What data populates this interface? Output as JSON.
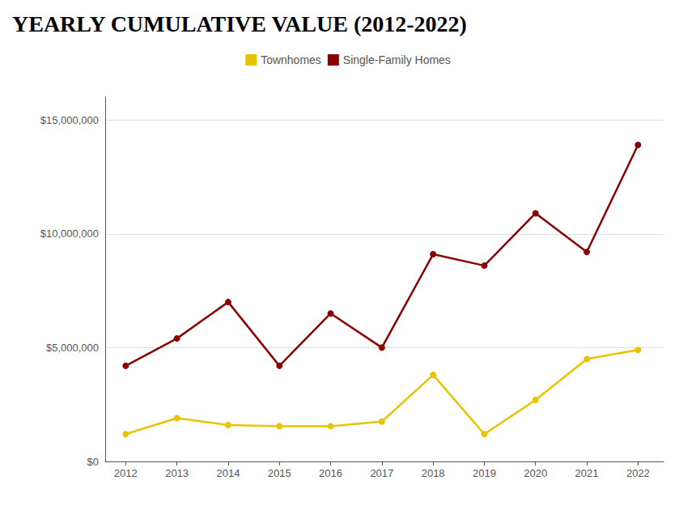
{
  "chart_data": {
    "type": "line",
    "title": "YEARLY CUMULATIVE VALUE (2012-2022)",
    "x": [
      2012,
      2013,
      2014,
      2015,
      2016,
      2017,
      2018,
      2019,
      2020,
      2021,
      2022
    ],
    "series": [
      {
        "name": "Townhomes",
        "color": "#E8C400",
        "values": [
          1200000,
          1900000,
          1600000,
          1550000,
          1550000,
          1750000,
          3800000,
          1200000,
          2700000,
          4500000,
          4900000
        ]
      },
      {
        "name": "Single-Family Homes",
        "color": "#8B0000",
        "values": [
          4200000,
          5400000,
          7000000,
          4200000,
          6500000,
          5000000,
          9100000,
          8600000,
          10900000,
          9200000,
          13900000
        ]
      }
    ],
    "xlim": [
      2011.6,
      2022.5
    ],
    "xticks": [
      2012,
      2013,
      2014,
      2015,
      2016,
      2017,
      2018,
      2019,
      2020,
      2021,
      2022
    ],
    "ylim": [
      0,
      16000000
    ],
    "yticks": [
      {
        "value": 0,
        "label": "$0"
      },
      {
        "value": 5000000,
        "label": "$5,000,000"
      },
      {
        "value": 10000000,
        "label": "$10,000,000"
      },
      {
        "value": 15000000,
        "label": "$15,000,000"
      }
    ],
    "grid": true,
    "legend": "top",
    "marker": "circle"
  }
}
